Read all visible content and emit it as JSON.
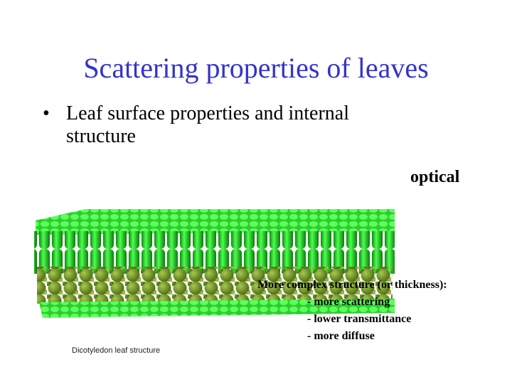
{
  "title": "Scattering properties of leaves",
  "bullets": [
    "Leaf surface properties and internal structure"
  ],
  "label": "optical",
  "figure": {
    "caption": "Dicotyledon leaf structure",
    "annotation": [
      "More complex structure (or thickness):",
      "- more scattering",
      "- lower transmittance",
      "- more diffuse"
    ]
  }
}
